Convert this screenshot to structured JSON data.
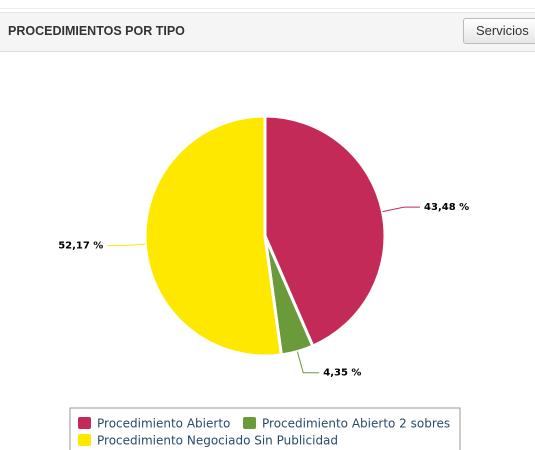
{
  "panel": {
    "title": "PROCEDIMIENTOS POR TIPO",
    "button": "Servicios"
  },
  "chart_data": {
    "type": "pie",
    "categories": [
      "Procedimiento Abierto",
      "Procedimiento Abierto 2 sobres",
      "Procedimiento Negociado Sin Publicidad"
    ],
    "values": [
      43.48,
      4.35,
      52.17
    ],
    "value_labels": [
      "43,48 %",
      "4,35 %",
      "52,17 %"
    ],
    "colors": [
      "#c42a57",
      "#6a9a3a",
      "#ffe800"
    ],
    "legend": "bottom"
  }
}
